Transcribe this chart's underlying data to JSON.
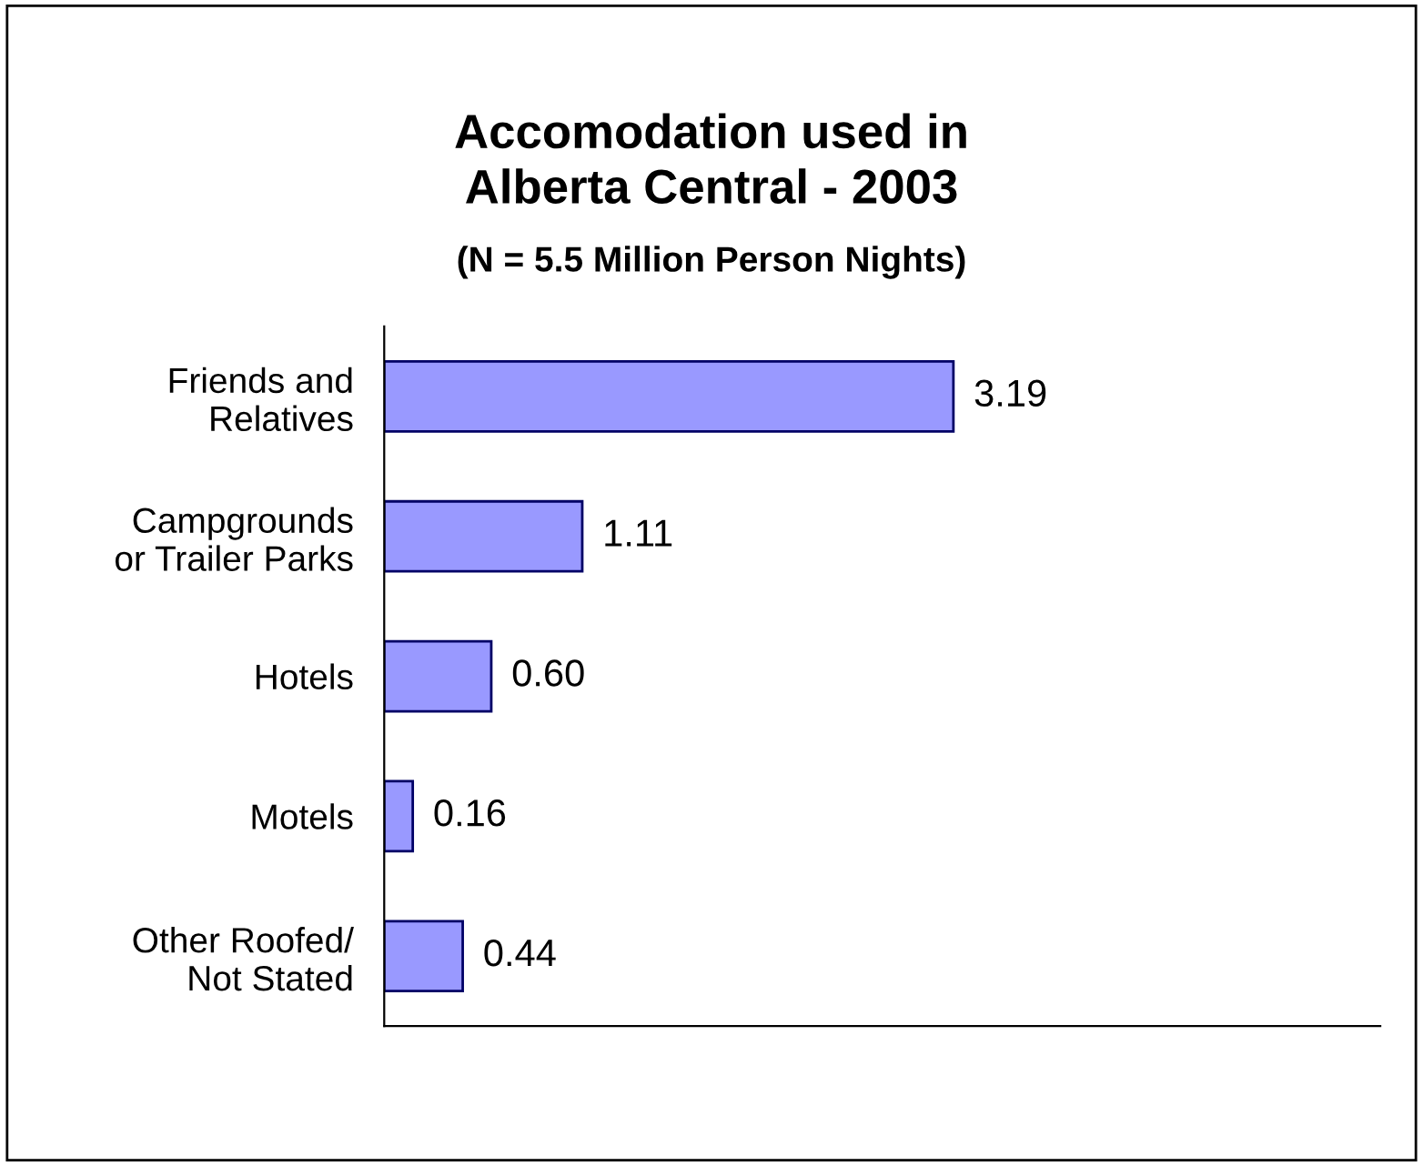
{
  "chart_data": {
    "type": "bar",
    "orientation": "horizontal",
    "title": "Accomodation used in\nAlberta Central - 2003",
    "subtitle": "(N = 5.5 Million Person Nights)",
    "categories": [
      "Friends and\nRelatives",
      "Campgrounds\nor Trailer Parks",
      "Hotels",
      "Motels",
      "Other Roofed/\nNot Stated"
    ],
    "values": [
      3.19,
      1.11,
      0.6,
      0.16,
      0.44
    ],
    "value_labels": [
      "3.19",
      "1.11",
      "0.60",
      "0.16",
      "0.44"
    ],
    "color": "#9999ff",
    "grid": false,
    "legend": false
  }
}
